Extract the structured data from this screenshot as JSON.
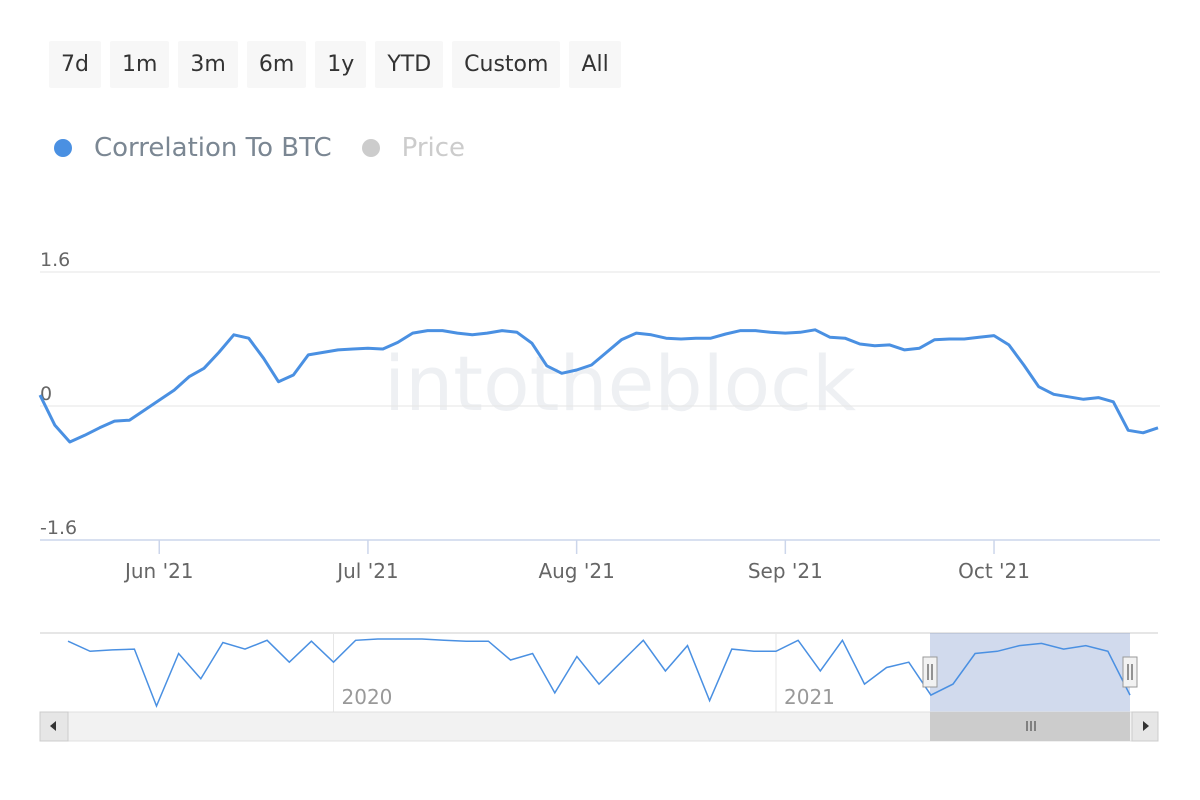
{
  "buttons": [
    "7d",
    "1m",
    "3m",
    "6m",
    "1y",
    "YTD",
    "Custom",
    "All"
  ],
  "watermark": "intotheblock",
  "chart_data": {
    "type": "line",
    "series": [
      {
        "name": "Correlation To BTC",
        "color": "#4a90e2",
        "values": [
          0.13,
          -0.23,
          -0.43,
          -0.35,
          -0.26,
          -0.18,
          -0.17,
          -0.05,
          0.07,
          0.19,
          0.35,
          0.45,
          0.64,
          0.85,
          0.81,
          0.57,
          0.29,
          0.37,
          0.61,
          0.64,
          0.67,
          0.68,
          0.69,
          0.68,
          0.76,
          0.87,
          0.9,
          0.9,
          0.87,
          0.85,
          0.87,
          0.9,
          0.88,
          0.75,
          0.48,
          0.39,
          0.43,
          0.49,
          0.64,
          0.79,
          0.87,
          0.85,
          0.81,
          0.8,
          0.81,
          0.81,
          0.86,
          0.9,
          0.9,
          0.88,
          0.87,
          0.88,
          0.91,
          0.82,
          0.81,
          0.74,
          0.72,
          0.73,
          0.67,
          0.69,
          0.79,
          0.8,
          0.8,
          0.82,
          0.84,
          0.73,
          0.49,
          0.23,
          0.14,
          0.11,
          0.08,
          0.1,
          0.05,
          -0.29,
          -0.32,
          -0.26
        ]
      }
    ],
    "hidden_series": [
      {
        "name": "Price",
        "color": "#cccccc"
      }
    ],
    "categories": [
      null,
      null,
      null,
      null,
      null,
      null,
      null,
      null,
      "Jun '21",
      null,
      null,
      null,
      null,
      null,
      null,
      null,
      null,
      null,
      null,
      null,
      null,
      null,
      "Jul '21",
      null,
      null,
      null,
      null,
      null,
      null,
      null,
      null,
      null,
      null,
      null,
      null,
      null,
      "Aug '21",
      null,
      null,
      null,
      null,
      null,
      null,
      null,
      null,
      null,
      null,
      null,
      null,
      null,
      "Sep '21",
      null,
      null,
      null,
      null,
      null,
      null,
      null,
      null,
      null,
      null,
      null,
      null,
      null,
      "Oct '21",
      null,
      null,
      null,
      null,
      null,
      null,
      null,
      null,
      null,
      null,
      null
    ],
    "ylim": [
      -1.6,
      1.6
    ],
    "yticks": [
      -1.6,
      0,
      1.6
    ],
    "grid": true,
    "navigator": {
      "values": [
        0.78,
        0.55,
        0.58,
        0.6,
        -0.7,
        0.5,
        -0.08,
        0.75,
        0.6,
        0.8,
        0.3,
        0.78,
        0.3,
        0.8,
        0.83,
        0.83,
        0.83,
        0.8,
        0.78,
        0.78,
        0.35,
        0.5,
        -0.4,
        0.43,
        -0.2,
        0.3,
        0.8,
        0.1,
        0.68,
        -0.58,
        0.6,
        0.55,
        0.55,
        0.8,
        0.1,
        0.8,
        -0.2,
        0.18,
        0.3,
        -0.45,
        -0.2,
        0.5,
        0.55,
        0.68,
        0.73,
        0.6,
        0.68,
        0.55,
        -0.45
      ],
      "categories": [
        null,
        null,
        null,
        null,
        null,
        null,
        null,
        null,
        null,
        null,
        null,
        null,
        "2020",
        null,
        null,
        null,
        null,
        null,
        null,
        null,
        null,
        null,
        null,
        null,
        null,
        null,
        null,
        null,
        null,
        null,
        null,
        null,
        "2021",
        null,
        null,
        null,
        null,
        null,
        null,
        null,
        null,
        null,
        null,
        null,
        null,
        null,
        null,
        null,
        null
      ]
    }
  }
}
